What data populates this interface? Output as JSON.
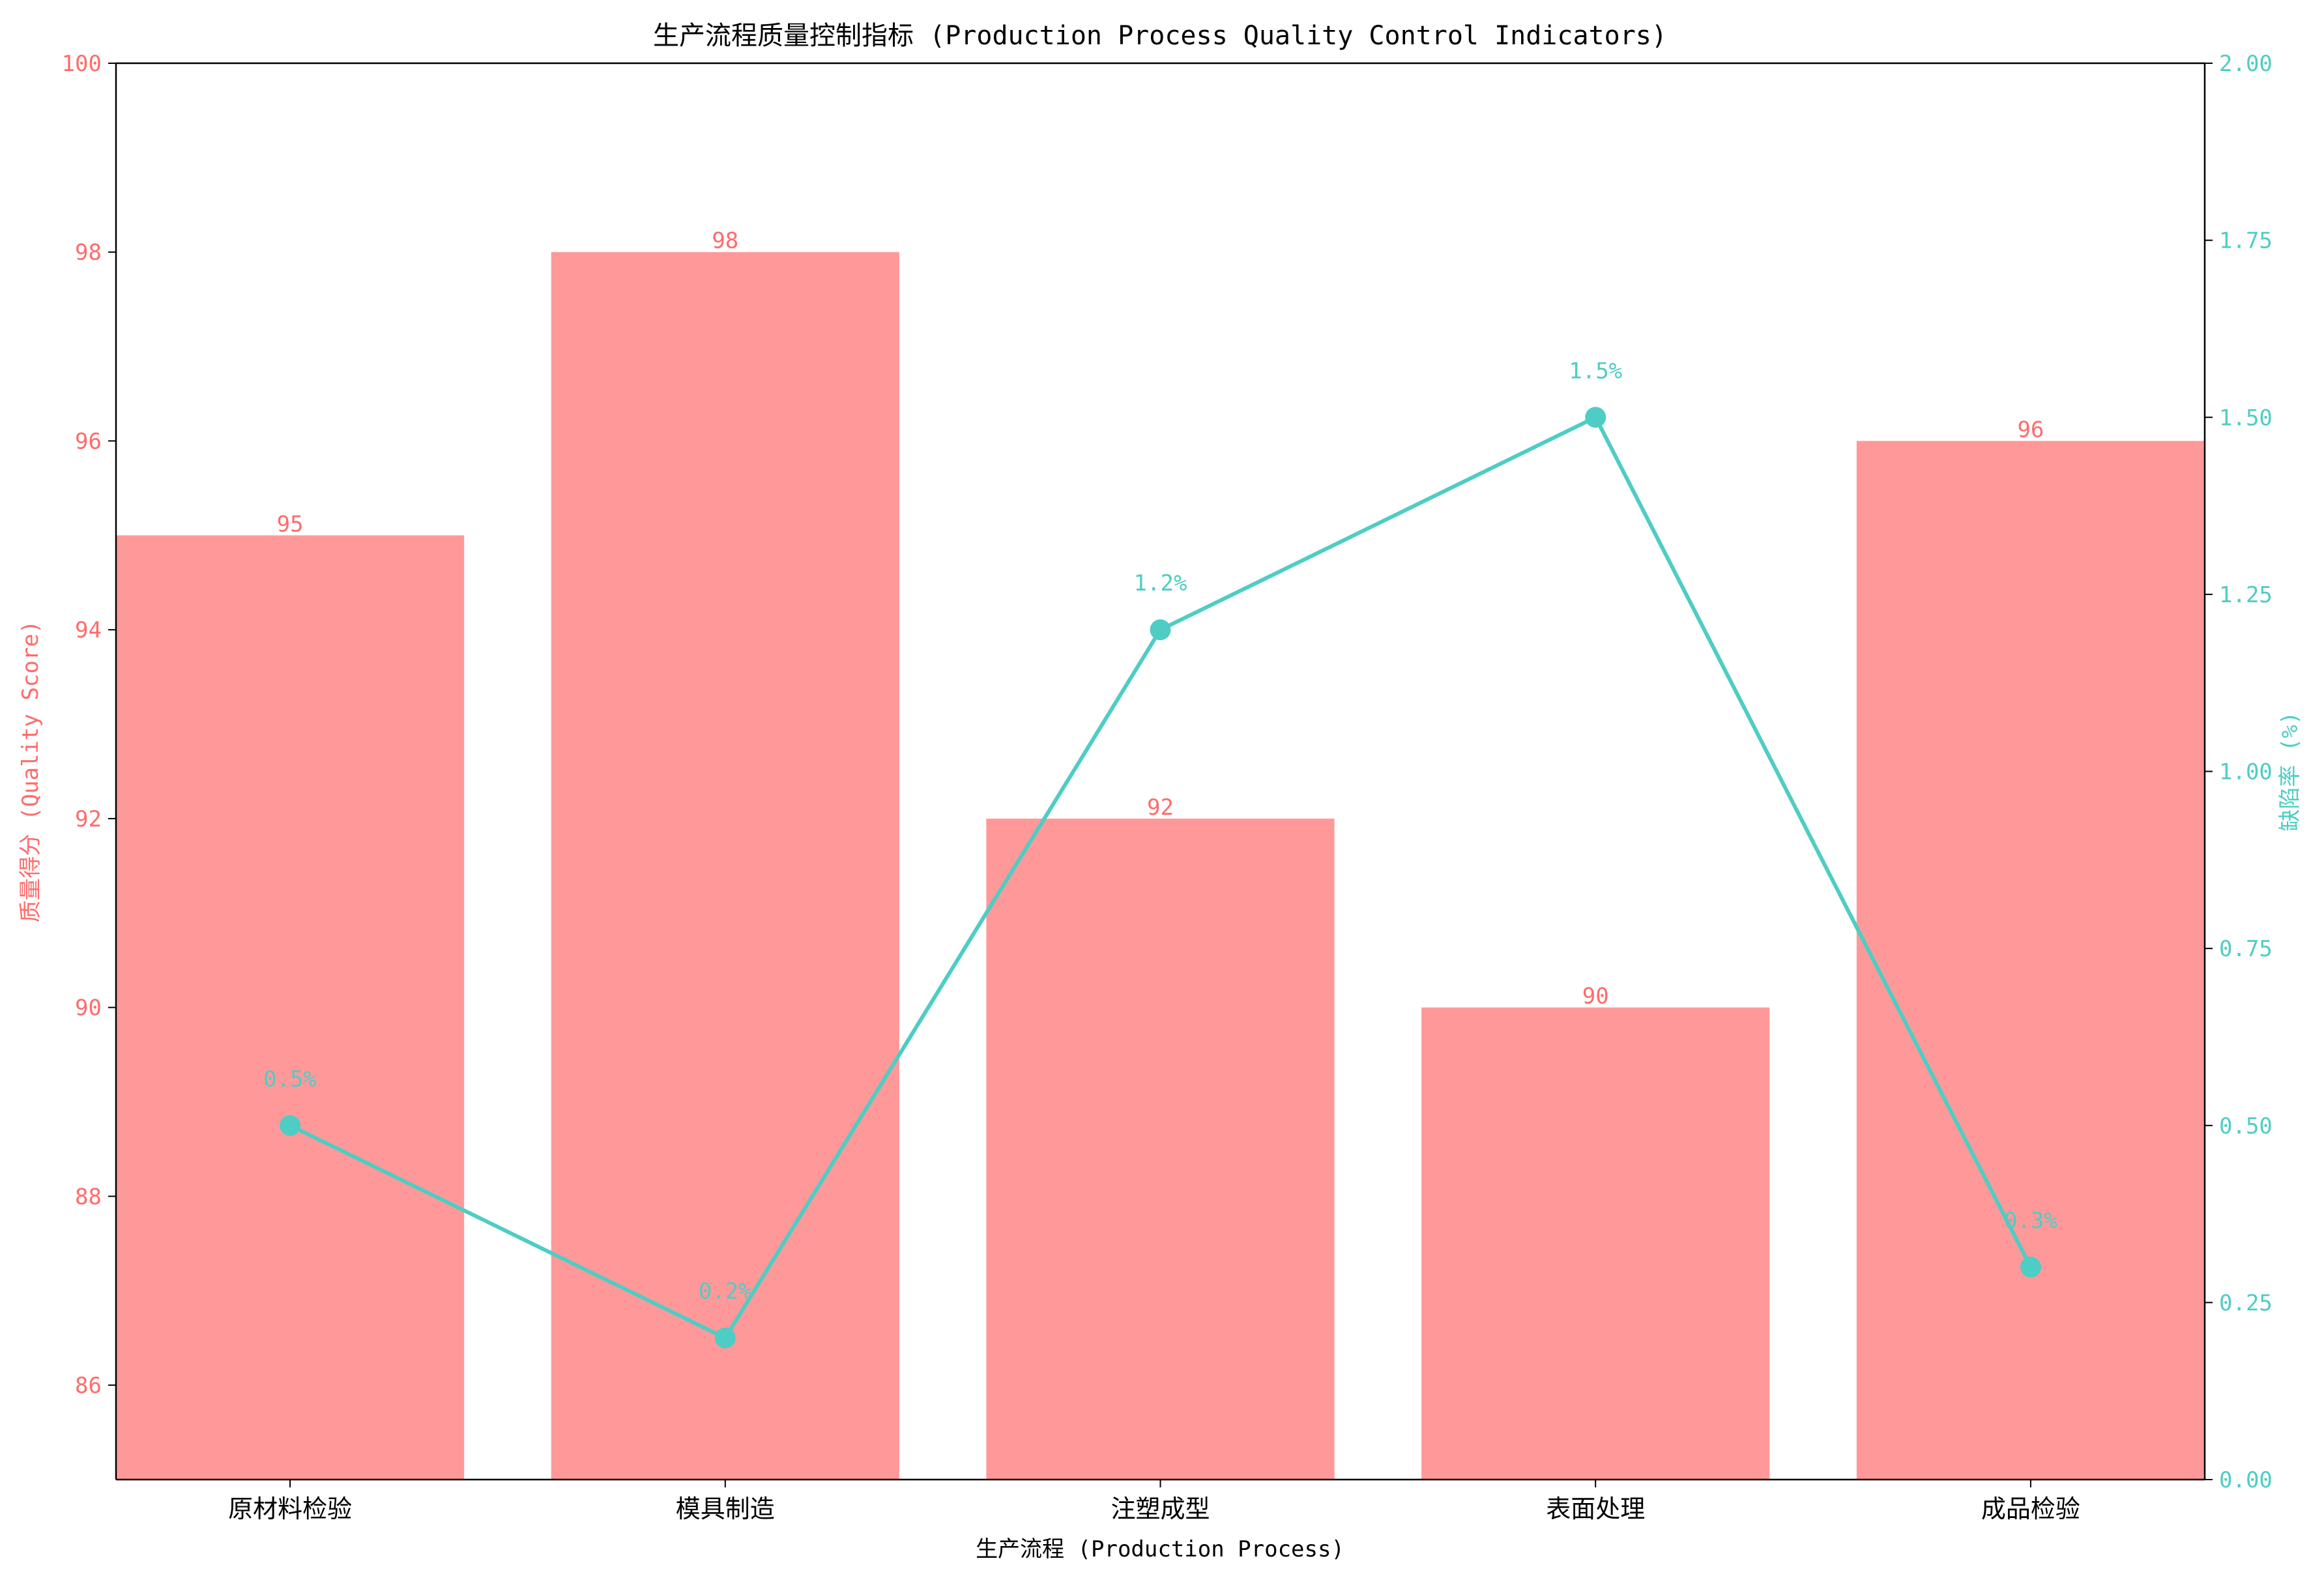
{
  "chart_data": {
    "type": "bar+line",
    "title": "生产流程质量控制指标 (Production Process Quality Control Indicators)",
    "xlabel": "生产流程 (Production Process)",
    "ylabel_left": "质量得分 (Quality Score)",
    "ylabel_right": "缺陷率 (%)",
    "categories": [
      "原材料检验",
      "模具制造",
      "注塑成型",
      "表面处理",
      "成品检验"
    ],
    "bars": {
      "values": [
        95,
        98,
        92,
        90,
        96
      ],
      "labels": [
        "95",
        "98",
        "92",
        "90",
        "96"
      ],
      "color": "#ff9999"
    },
    "line": {
      "values": [
        0.5,
        0.2,
        1.2,
        1.5,
        0.3
      ],
      "labels": [
        "0.5%",
        "0.2%",
        "1.2%",
        "1.5%",
        "0.3%"
      ],
      "color": "#4ecdc4"
    },
    "ylim_left": [
      85,
      100
    ],
    "yticks_left": [
      "86",
      "88",
      "90",
      "92",
      "94",
      "96",
      "98",
      "100"
    ],
    "ylim_right": [
      0,
      2
    ],
    "yticks_right": [
      "0.00",
      "0.25",
      "0.50",
      "0.75",
      "1.00",
      "1.25",
      "1.50",
      "1.75",
      "2.00"
    ],
    "left_axis_color": "#ff6b6b",
    "right_axis_color": "#4ecdc4",
    "grid": false
  }
}
